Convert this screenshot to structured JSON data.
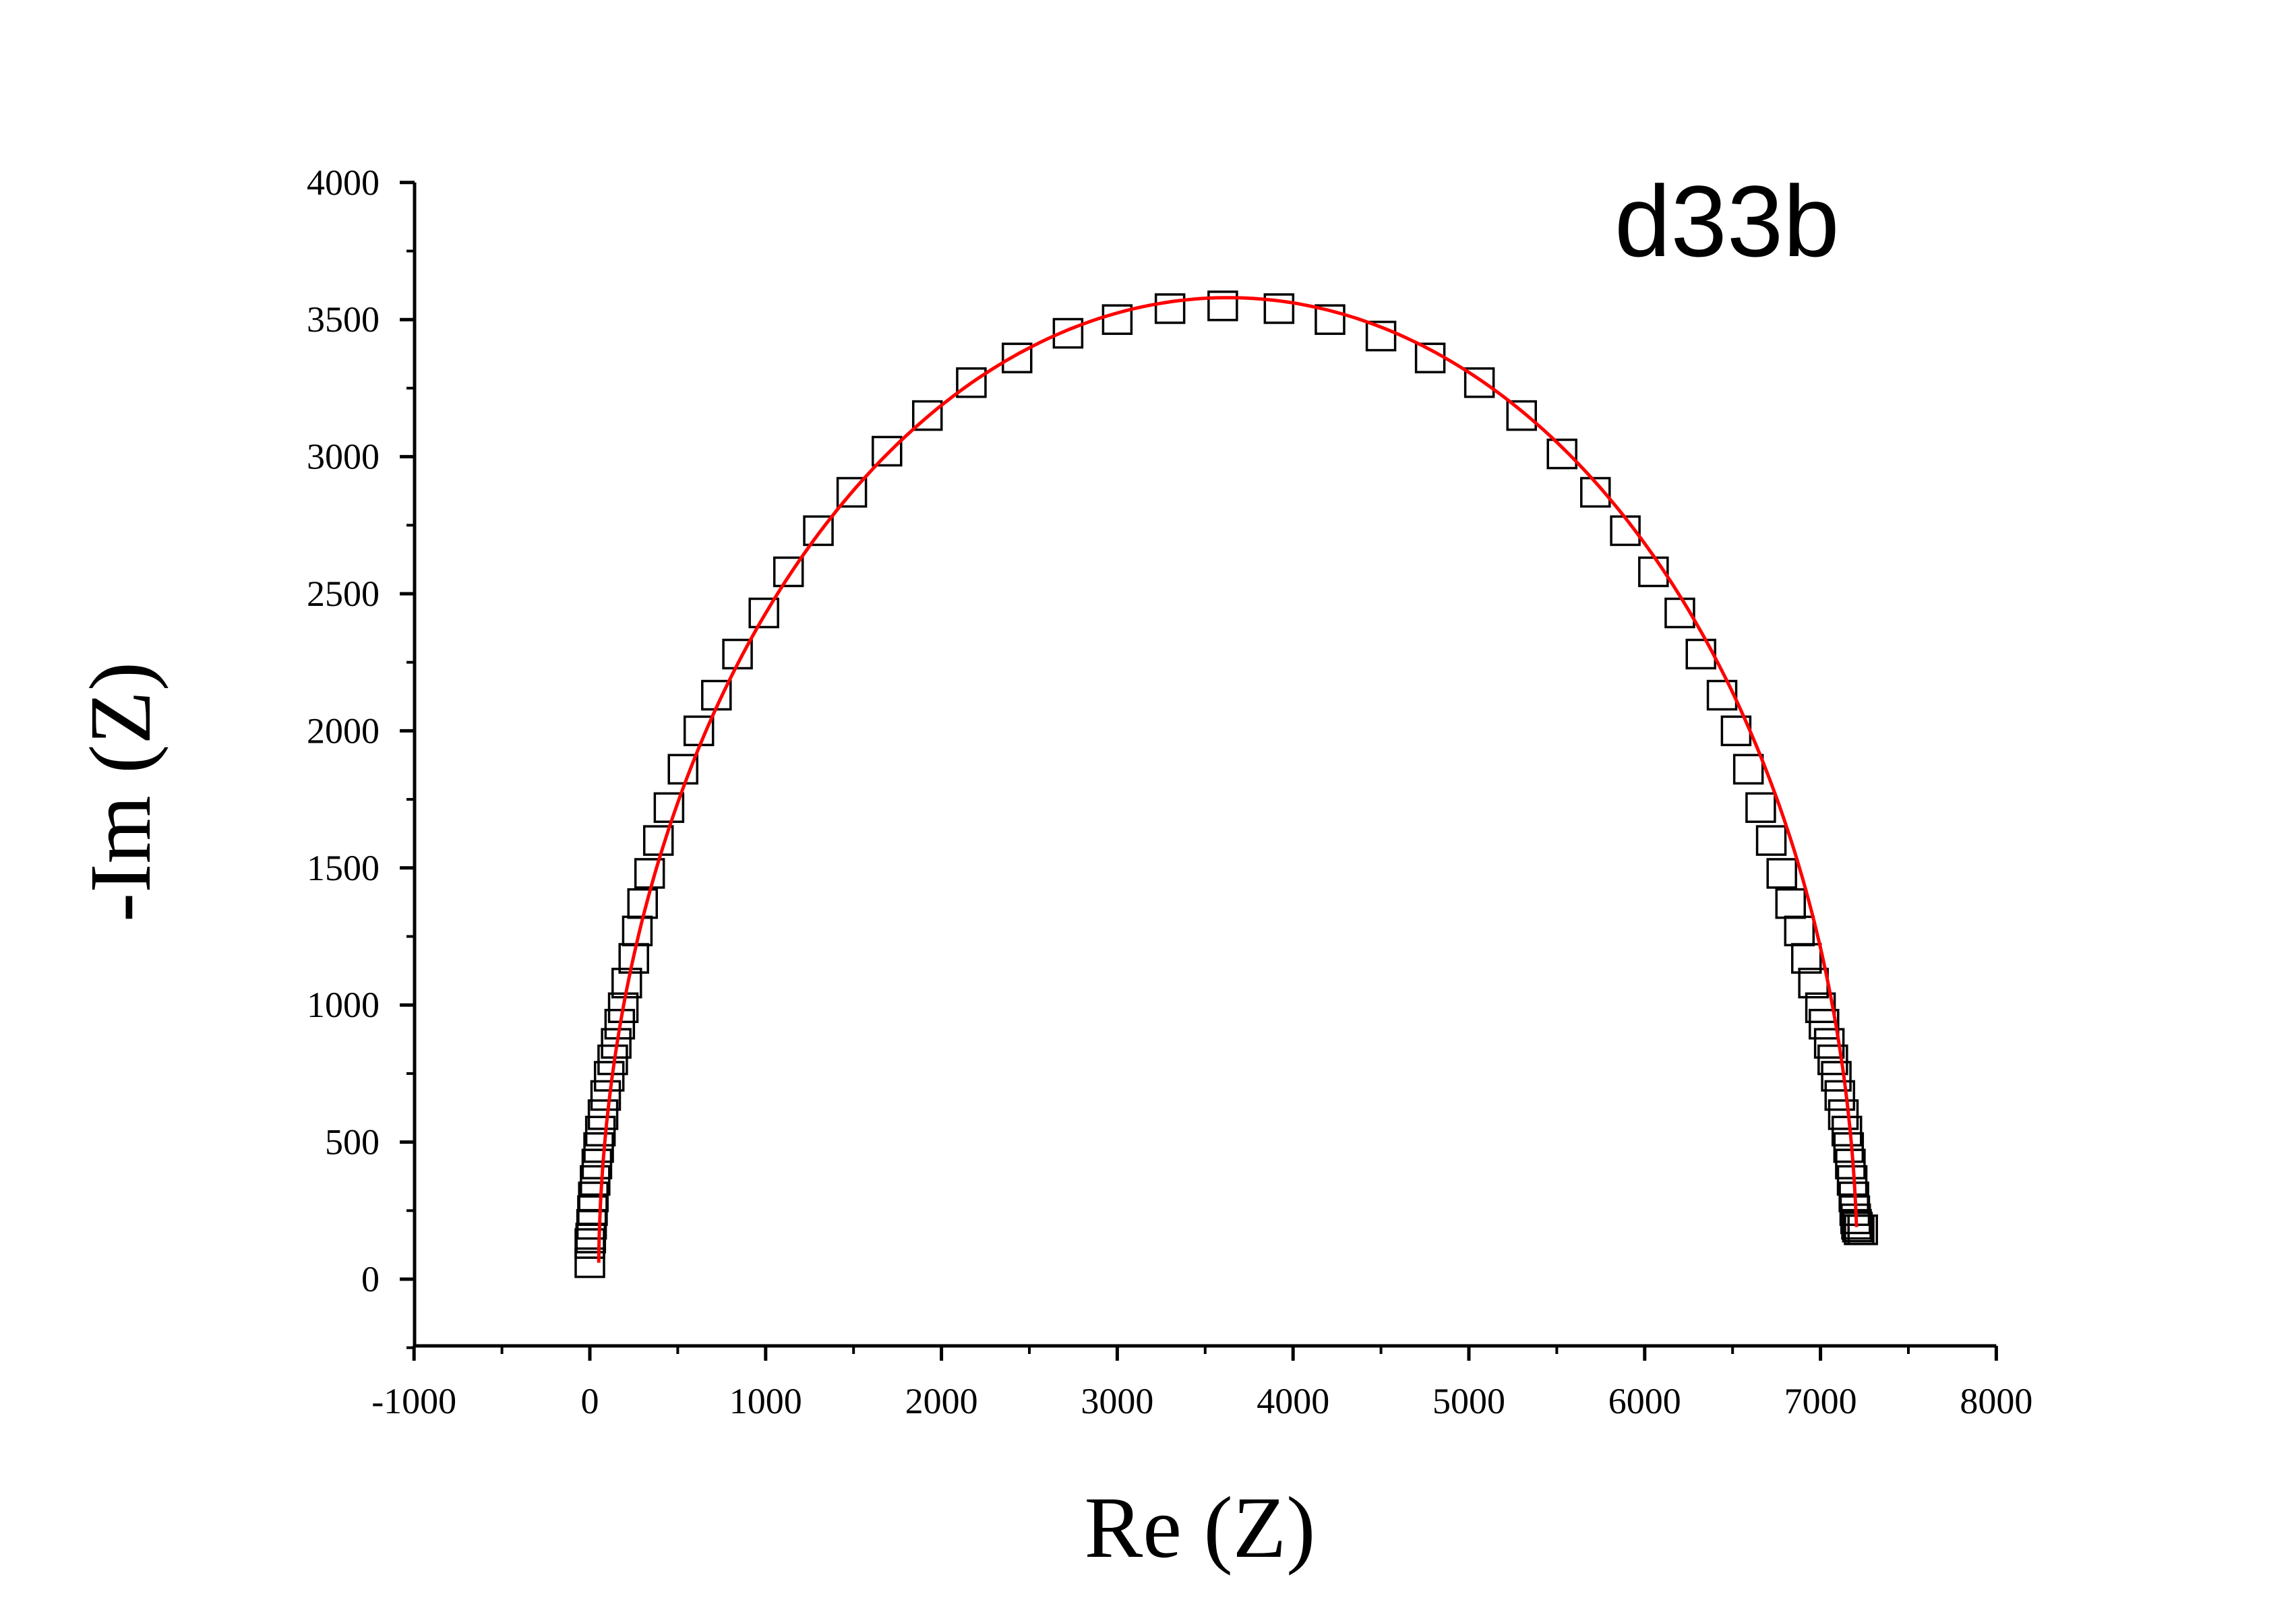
{
  "chart_data": {
    "type": "scatter",
    "title": "",
    "annotation": "d33b",
    "xlabel": "Re (Z)",
    "ylabel": "-Im (Z)",
    "xlim": [
      -1000,
      8000
    ],
    "ylim": [
      -250,
      4000
    ],
    "xticks": [
      "-1000",
      "0",
      "1000",
      "2000",
      "3000",
      "4000",
      "5000",
      "6000",
      "7000",
      "8000"
    ],
    "yticks": [
      "0",
      "500",
      "1000",
      "1500",
      "2000",
      "2500",
      "3000",
      "3500",
      "4000"
    ],
    "grid": false,
    "legend": "none",
    "series": [
      {
        "marker": "open-square",
        "color": "#000000",
        "points": [
          [
            0,
            60
          ],
          [
            0,
            130
          ],
          [
            5,
            150
          ],
          [
            10,
            200
          ],
          [
            15,
            250
          ],
          [
            20,
            300
          ],
          [
            30,
            360
          ],
          [
            40,
            420
          ],
          [
            50,
            480
          ],
          [
            60,
            540
          ],
          [
            75,
            600
          ],
          [
            90,
            670
          ],
          [
            110,
            740
          ],
          [
            130,
            800
          ],
          [
            150,
            860
          ],
          [
            170,
            930
          ],
          [
            190,
            990
          ],
          [
            210,
            1080
          ],
          [
            250,
            1170
          ],
          [
            270,
            1270
          ],
          [
            300,
            1370
          ],
          [
            340,
            1480
          ],
          [
            390,
            1600
          ],
          [
            450,
            1720
          ],
          [
            530,
            1860
          ],
          [
            620,
            2000
          ],
          [
            720,
            2130
          ],
          [
            840,
            2280
          ],
          [
            990,
            2430
          ],
          [
            1130,
            2580
          ],
          [
            1300,
            2730
          ],
          [
            1490,
            2870
          ],
          [
            1690,
            3020
          ],
          [
            1920,
            3150
          ],
          [
            2170,
            3270
          ],
          [
            2430,
            3360
          ],
          [
            2720,
            3450
          ],
          [
            3000,
            3500
          ],
          [
            3300,
            3540
          ],
          [
            3600,
            3550
          ],
          [
            3920,
            3540
          ],
          [
            4210,
            3500
          ],
          [
            4500,
            3440
          ],
          [
            4780,
            3360
          ],
          [
            5060,
            3270
          ],
          [
            5300,
            3150
          ],
          [
            5530,
            3010
          ],
          [
            5720,
            2870
          ],
          [
            5890,
            2730
          ],
          [
            6050,
            2580
          ],
          [
            6200,
            2430
          ],
          [
            6320,
            2280
          ],
          [
            6440,
            2130
          ],
          [
            6520,
            2000
          ],
          [
            6590,
            1860
          ],
          [
            6660,
            1720
          ],
          [
            6720,
            1600
          ],
          [
            6780,
            1480
          ],
          [
            6830,
            1370
          ],
          [
            6880,
            1270
          ],
          [
            6920,
            1170
          ],
          [
            6960,
            1080
          ],
          [
            7000,
            990
          ],
          [
            7020,
            930
          ],
          [
            7050,
            860
          ],
          [
            7070,
            800
          ],
          [
            7090,
            740
          ],
          [
            7110,
            670
          ],
          [
            7130,
            600
          ],
          [
            7150,
            540
          ],
          [
            7160,
            480
          ],
          [
            7170,
            420
          ],
          [
            7180,
            360
          ],
          [
            7190,
            300
          ],
          [
            7195,
            250
          ],
          [
            7200,
            220
          ],
          [
            7205,
            200
          ],
          [
            7210,
            190
          ],
          [
            7220,
            180
          ],
          [
            7240,
            180
          ]
        ]
      },
      {
        "line": "fit",
        "color": "#ff0000",
        "center": [
          3630,
          0
        ],
        "radius": 3580,
        "y_start": 60,
        "y_end": 190
      }
    ]
  }
}
